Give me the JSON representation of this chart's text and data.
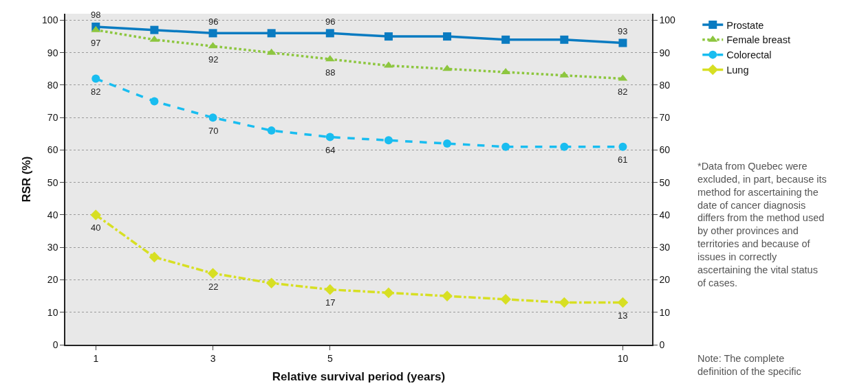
{
  "chart_data": {
    "type": "line",
    "xlabel": "Relative survival period (years)",
    "ylabel": "RSR (%)",
    "x": [
      1,
      2,
      3,
      4,
      5,
      6,
      7,
      8,
      9,
      10
    ],
    "xlim": [
      0.48,
      10.5
    ],
    "xticks": [
      1,
      3,
      5,
      10
    ],
    "ylim": [
      0,
      102
    ],
    "yticks": [
      0,
      10,
      20,
      30,
      40,
      50,
      60,
      70,
      80,
      90,
      100
    ],
    "y2lim": [
      0,
      102
    ],
    "y2ticks": [
      0,
      10,
      20,
      30,
      40,
      50,
      60,
      70,
      80,
      90,
      100
    ],
    "grid": "y",
    "legend": "top right",
    "series": [
      {
        "name": "Prostate",
        "color": "#0a7bc1",
        "marker": "square",
        "line_style": "solid",
        "values": [
          98,
          97,
          96,
          96,
          96,
          95,
          95,
          94,
          94,
          93
        ],
        "value_labels": [
          "98",
          null,
          "96",
          null,
          "96",
          null,
          null,
          null,
          null,
          "93"
        ]
      },
      {
        "name": "Female breast",
        "color": "#8dc63f",
        "marker": "triangle",
        "line_style": "dotted",
        "values": [
          97,
          94,
          92,
          90,
          88,
          86,
          85,
          84,
          83,
          82
        ],
        "value_labels": [
          "97",
          null,
          "92",
          null,
          "88",
          null,
          null,
          null,
          null,
          "82"
        ]
      },
      {
        "name": "Colorectal",
        "color": "#19bdf0",
        "marker": "circle",
        "line_style": "dashed",
        "values": [
          82,
          75,
          70,
          66,
          64,
          63,
          62,
          61,
          61,
          61
        ],
        "value_labels": [
          "82",
          null,
          "70",
          null,
          "64",
          null,
          null,
          null,
          null,
          "61"
        ]
      },
      {
        "name": "Lung",
        "color": "#d7df23",
        "marker": "diamond",
        "line_style": "dashdot",
        "values": [
          40,
          27,
          22,
          19,
          17,
          16,
          15,
          14,
          13,
          13
        ],
        "value_labels": [
          "40",
          null,
          "22",
          null,
          "17",
          null,
          null,
          null,
          null,
          "13"
        ]
      }
    ],
    "annotations": [
      "*Data from Quebec were\nexcluded, in part, because its\nmethod for ascertaining the\ndate of cancer diagnosis\ndiffers from the method used\nby other provinces and\nterritories and because of\nissues in correctly\nascertaining the vital status\nof cases.",
      "Note: The complete\ndefinition of the specific"
    ]
  }
}
